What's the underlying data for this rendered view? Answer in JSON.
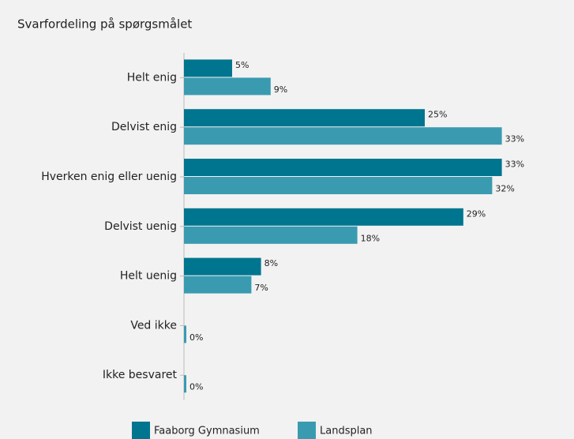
{
  "chart_data": {
    "type": "bar",
    "orientation": "horizontal",
    "title": "Svarfordeling på spørgsmålet",
    "categories": [
      "Helt enig",
      "Delvist enig",
      "Hverken enig eller uenig",
      "Delvist uenig",
      "Helt uenig",
      "Ved ikke",
      "Ikke besvaret"
    ],
    "series": [
      {
        "name": "Faaborg Gymnasium",
        "color": "#00758f",
        "values": [
          5,
          25,
          33,
          29,
          8,
          0,
          0
        ],
        "value_labels": [
          "5%",
          "25%",
          "33%",
          "29%",
          "8%",
          null,
          null
        ]
      },
      {
        "name": "Landsplan",
        "color": "#3a9bb0",
        "values": [
          9,
          33,
          32,
          18,
          7,
          0,
          0
        ],
        "value_labels": [
          "9%",
          "33%",
          "32%",
          "18%",
          "7%",
          "0%",
          "0%"
        ]
      }
    ],
    "legend": "bottom"
  }
}
